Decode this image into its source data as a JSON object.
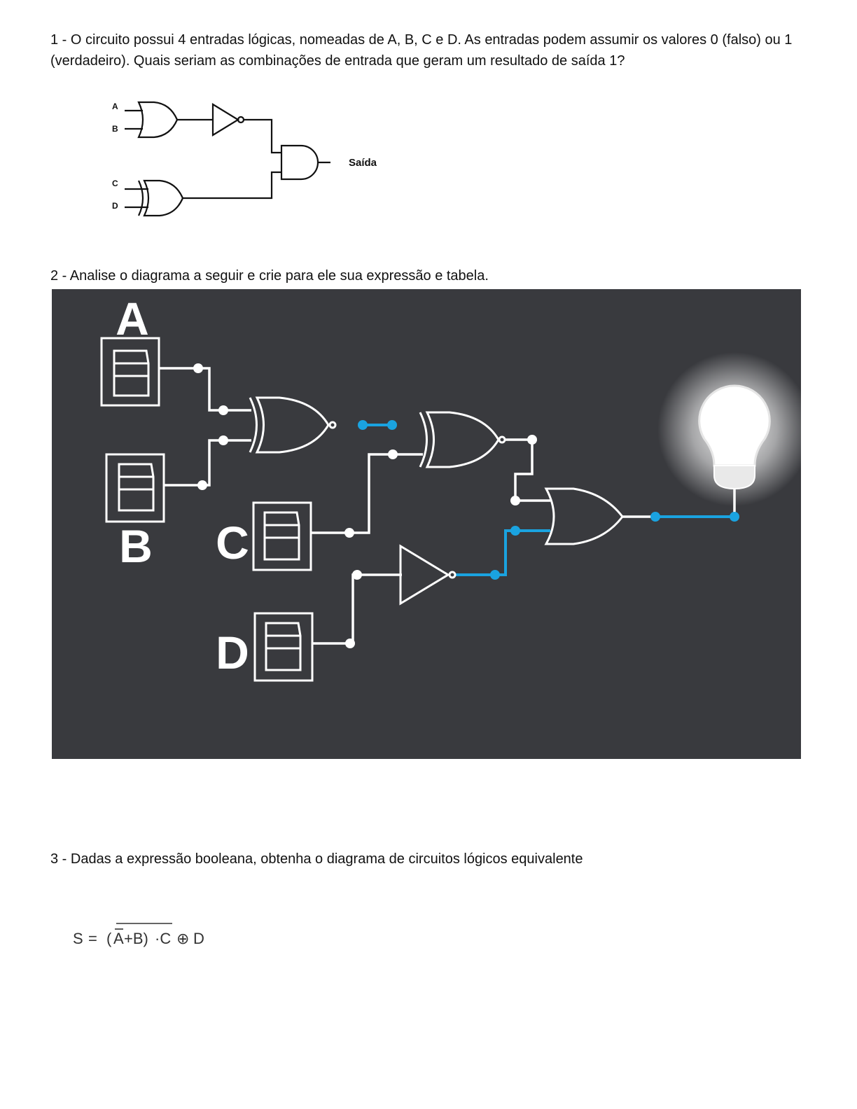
{
  "questions": {
    "q1": "1 - O circuito possui 4 entradas lógicas, nomeadas de A, B, C e D. As entradas podem assumir os valores 0 (falso) ou 1 (verdadeiro). Quais seriam as combinações de entrada que geram um resultado de saída 1?",
    "q2": "2 - Analise o diagrama a seguir e crie para ele sua expressão e tabela.",
    "q3": "3 - Dadas a expressão booleana, obtenha o diagrama de circuitos lógicos equivalente"
  },
  "diagram1": {
    "inputs": [
      "A",
      "B",
      "C",
      "D"
    ],
    "output_label": "Saída"
  },
  "diagram2": {
    "switch_labels": [
      "A",
      "B",
      "C",
      "D"
    ],
    "background_color": "#393a3e",
    "wire_color": "#ffffff",
    "active_wire_color": "#1aa3e0",
    "lamp_icon": "light-bulb-icon"
  },
  "expression": {
    "lhs": "S",
    "eq": "=",
    "open": "(",
    "a": "A",
    "plus_b": "+B)",
    "dot_c": "·C",
    "xor": "⊕",
    "d": "D"
  }
}
